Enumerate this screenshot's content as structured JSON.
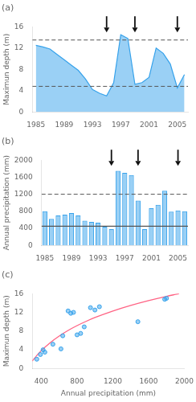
{
  "chart_data": [
    {
      "type": "area",
      "title": "(a)",
      "x": [
        1985,
        1986,
        1987,
        1988,
        1989,
        1990,
        1991,
        1992,
        1993,
        1994,
        1995,
        1996,
        1997,
        1998,
        1999,
        2000,
        2001,
        2002,
        2003,
        2004,
        2005,
        2006
      ],
      "values": [
        12.5,
        12.2,
        11.8,
        10.8,
        9.8,
        8.8,
        7.8,
        6.2,
        4.2,
        3.5,
        3.0,
        5.5,
        14.5,
        13.8,
        5.2,
        5.5,
        6.5,
        12.0,
        11.0,
        9.0,
        4.5,
        7.0
      ],
      "hlines": [
        {
          "value": 13.5,
          "line_style": "dashed"
        },
        {
          "value": 4.8,
          "line_style": "dashed"
        }
      ],
      "drought_years": [
        1995,
        1999,
        2005
      ],
      "xlim": [
        1984.5,
        2006.5
      ],
      "xticks": [
        1985,
        1989,
        1993,
        1997,
        2001,
        2005
      ],
      "ylim": [
        0,
        16
      ],
      "yticks": [
        0,
        4,
        8,
        12,
        16
      ],
      "ylabel": "Maximun depth (m)",
      "grid": false
    },
    {
      "type": "bar",
      "title": "(b)",
      "x": [
        1985,
        1986,
        1987,
        1988,
        1989,
        1990,
        1991,
        1992,
        1993,
        1994,
        1995,
        1996,
        1997,
        1998,
        1999,
        2000,
        2001,
        2002,
        2003,
        2004,
        2005,
        2006
      ],
      "values": [
        800,
        620,
        700,
        720,
        760,
        700,
        580,
        550,
        530,
        440,
        380,
        1750,
        1700,
        1650,
        1050,
        380,
        870,
        950,
        1280,
        790,
        820,
        800
      ],
      "hlines": [
        {
          "value": 450,
          "line_style": "solid"
        },
        {
          "value": 1200,
          "line_style": "dashed"
        }
      ],
      "drought_years": [
        1995,
        1999,
        2005
      ],
      "xlim": [
        1984.5,
        2006.5
      ],
      "xticks": [
        1985,
        1989,
        1993,
        1997,
        2001,
        2005
      ],
      "ylim": [
        0,
        2000
      ],
      "yticks": [
        0,
        400,
        800,
        1200,
        1600,
        2000
      ],
      "ylabel": "Annual precipitation (mm)",
      "grid": false
    },
    {
      "type": "scatter",
      "title": "(c)",
      "series": [
        {
          "type": "scatter",
          "x": [
            350,
            390,
            420,
            440,
            530,
            620,
            640,
            700,
            730,
            760,
            800,
            840,
            880,
            950,
            1000,
            1050,
            1480,
            1780,
            1800
          ],
          "values": [
            2.0,
            3.0,
            4.0,
            3.5,
            5.2,
            4.2,
            7.0,
            12.3,
            11.8,
            12.0,
            7.2,
            7.5,
            8.9,
            13.0,
            12.5,
            13.2,
            10.0,
            14.8,
            15.0
          ]
        },
        {
          "type": "line",
          "x": [
            300,
            350,
            400,
            500,
            600,
            700,
            800,
            900,
            1000,
            1200,
            1400,
            1600,
            1800,
            1900,
            1940
          ],
          "values": [
            1.61,
            2.8,
            3.83,
            5.54,
            6.95,
            8.14,
            9.17,
            10.07,
            10.89,
            12.29,
            13.48,
            14.51,
            15.42,
            15.83,
            15.99
          ]
        }
      ],
      "xlim": [
        300,
        2000
      ],
      "xticks": [
        400,
        800,
        1200,
        1600,
        2000
      ],
      "ylim": [
        0,
        16
      ],
      "yticks": [
        0,
        4,
        8,
        12,
        16
      ],
      "xlabel": "Annual precipitation (mm)",
      "ylabel": "Maximun depth (m)",
      "grid": false
    }
  ]
}
